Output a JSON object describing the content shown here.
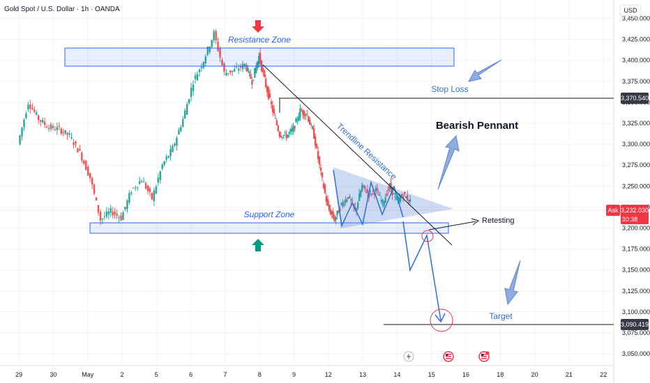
{
  "title": "Gold Spot / U.S. Dollar · 1h · OANDA",
  "currency": "USD",
  "colors": {
    "up": "#26a69a",
    "down": "#ef5350",
    "zone": "#2962ff",
    "arrow": "#5b86d6",
    "tag": "#363a45",
    "ask": "#f23645"
  },
  "icons": [
    "lightning-icon",
    "us-flag-icon",
    "us-flag-icon"
  ],
  "annotations": {
    "resistance_zone": "Resistance Zone",
    "support_zone": "Support Zone",
    "stop_loss": "Stop Loss",
    "bearish_pennant": "Bearish Pennant",
    "trendline": "Trendline Resistance",
    "retesting": "Retesting",
    "target": "Target"
  },
  "price_tags": {
    "stop_loss": "3,370.540",
    "target": "3,090.419",
    "ask_label": "Ask",
    "ask_price": "3,232.030",
    "ask_timer": "30:38"
  },
  "chart_data": {
    "type": "line",
    "title": "Gold Spot / U.S. Dollar · 1h · OANDA",
    "x_tick_labels": [
      "29",
      "30",
      "May",
      "2",
      "5",
      "6",
      "7",
      "8",
      "9",
      "12",
      "13",
      "14",
      "15",
      "16",
      "18",
      "20",
      "21",
      "22"
    ],
    "y_tick_labels": [
      "3,450.000",
      "3,425.000",
      "3,400.000",
      "3,375.000",
      "3,350.000",
      "3,325.000",
      "3,300.000",
      "3,275.000",
      "3,250.000",
      "3,225.000",
      "3,200.000",
      "3,175.000",
      "3,150.000",
      "3,125.000",
      "3,100.000",
      "3,075.000",
      "3,050.000"
    ],
    "y_ticks": [
      3450,
      3425,
      3400,
      3375,
      3350,
      3325,
      3300,
      3275,
      3250,
      3225,
      3200,
      3175,
      3150,
      3125,
      3100,
      3075,
      3050
    ],
    "ylim": [
      3036,
      3472
    ],
    "x_ticks": [
      0,
      1,
      2,
      3,
      4,
      5,
      6,
      7,
      8,
      9,
      10,
      11,
      12,
      13,
      14,
      15,
      16,
      17
    ],
    "xlim": [
      -0.55,
      17.3
    ],
    "series": [
      {
        "x": [
          0,
          0.3,
          0.6,
          0.9,
          1.2,
          1.5,
          1.8,
          2.1,
          2.4,
          2.7,
          3.0,
          3.3,
          3.6,
          3.9,
          4.2,
          4.5,
          4.8,
          5.1,
          5.4,
          5.7,
          6.0,
          6.3,
          6.6,
          6.8,
          7.0,
          7.2,
          7.4,
          7.6,
          7.8,
          8.0,
          8.2,
          8.4,
          8.6,
          8.8,
          9.0,
          9.2,
          9.4,
          9.6,
          9.8,
          10.0,
          10.2,
          10.4,
          10.6,
          10.8,
          11.0,
          11.2,
          11.4
        ],
        "values": [
          3300,
          3350,
          3330,
          3320,
          3318,
          3310,
          3290,
          3260,
          3210,
          3220,
          3212,
          3245,
          3258,
          3235,
          3275,
          3295,
          3330,
          3375,
          3400,
          3432,
          3385,
          3388,
          3395,
          3375,
          3405,
          3370,
          3340,
          3312,
          3310,
          3318,
          3340,
          3335,
          3310,
          3265,
          3225,
          3210,
          3228,
          3238,
          3220,
          3250,
          3240,
          3245,
          3230,
          3250,
          3232,
          3240,
          3232
        ]
      }
    ],
    "levels": {
      "stop_loss": 3370.54,
      "target": 3090.419,
      "ask": 3232.03
    }
  }
}
